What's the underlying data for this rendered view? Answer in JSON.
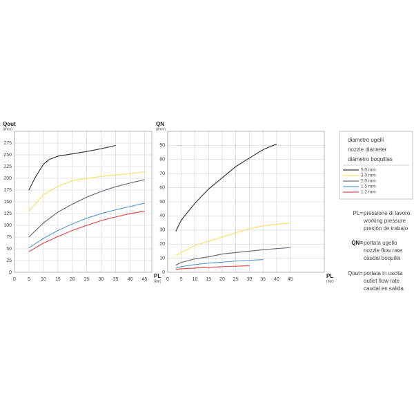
{
  "chart_data": [
    {
      "type": "line",
      "y_label": "Qout",
      "y_unit": "(l/min)",
      "x_label": "PL",
      "x_unit": "(bar)",
      "xlim": [
        0,
        47.5
      ],
      "ylim": [
        0,
        300
      ],
      "xticks": [
        0,
        5,
        10,
        15,
        20,
        25,
        30,
        35,
        40,
        45
      ],
      "yticks": [
        0,
        25,
        50,
        75,
        100,
        125,
        150,
        175,
        200,
        225,
        250,
        275
      ],
      "grid": true,
      "series": [
        {
          "name": "5.0 mm",
          "color": "#3a3a3a",
          "x": [
            5,
            7,
            10,
            12,
            15,
            20,
            25,
            30,
            35
          ],
          "values": [
            175,
            200,
            230,
            240,
            247,
            252,
            257,
            263,
            270
          ]
        },
        {
          "name": "3.0 mm",
          "color": "#f2e36a",
          "x": [
            5,
            10,
            15,
            20,
            25,
            30,
            35,
            40,
            45
          ],
          "values": [
            130,
            165,
            183,
            195,
            200,
            204,
            207,
            210,
            214
          ]
        },
        {
          "name": "2.0 mm",
          "color": "#736a7a",
          "x": [
            5,
            10,
            15,
            20,
            25,
            30,
            35,
            40,
            45
          ],
          "values": [
            75,
            105,
            128,
            145,
            160,
            172,
            182,
            190,
            197
          ]
        },
        {
          "name": "1.5 mm",
          "color": "#5b9bd5",
          "x": [
            5,
            10,
            15,
            20,
            25,
            30,
            35,
            40,
            45
          ],
          "values": [
            52,
            72,
            89,
            103,
            115,
            125,
            133,
            140,
            147
          ]
        },
        {
          "name": "1.2 mm",
          "color": "#e05050",
          "x": [
            5,
            10,
            15,
            20,
            25,
            30,
            35,
            40,
            45
          ],
          "values": [
            44,
            62,
            76,
            89,
            100,
            110,
            118,
            125,
            130
          ]
        }
      ]
    },
    {
      "type": "line",
      "y_label": "QN",
      "y_unit": "(l/min)",
      "x_label": "PL",
      "x_unit": "(bar)",
      "xlim": [
        0,
        57.5
      ],
      "ylim": [
        0,
        100
      ],
      "xticks": [
        0,
        5,
        10,
        15,
        20,
        25,
        30,
        35,
        40,
        45
      ],
      "yticks": [
        0,
        10,
        20,
        30,
        40,
        50,
        60,
        70,
        80,
        90
      ],
      "grid": true,
      "series": [
        {
          "color": "#3a3a3a",
          "x": [
            3,
            5,
            10,
            15,
            20,
            25,
            30,
            35,
            40
          ],
          "values": [
            29,
            37,
            49,
            59,
            67,
            75,
            81,
            87,
            91
          ]
        },
        {
          "color": "#f2e36a",
          "x": [
            3,
            5,
            10,
            15,
            20,
            25,
            30,
            35,
            40,
            45
          ],
          "values": [
            12,
            14,
            19,
            22,
            25,
            28,
            31,
            33,
            34,
            35
          ]
        },
        {
          "color": "#736a7a",
          "x": [
            3,
            5,
            10,
            15,
            20,
            25,
            30,
            35,
            40,
            45
          ],
          "values": [
            5,
            7,
            9.5,
            11,
            13,
            14,
            15,
            16,
            16.8,
            17.5
          ]
        },
        {
          "color": "#5b9bd5",
          "x": [
            3,
            5,
            10,
            15,
            20,
            25,
            30,
            35
          ],
          "values": [
            3,
            4,
            5.5,
            6.5,
            7.2,
            8,
            8.5,
            9
          ]
        },
        {
          "color": "#e05050",
          "x": [
            3,
            5,
            10,
            15,
            20,
            25,
            30
          ],
          "values": [
            2,
            2.5,
            3,
            3.5,
            4,
            4.3,
            4.7
          ]
        }
      ]
    }
  ],
  "legend": {
    "title": [
      "diametro ugelli",
      "nozzle diameter",
      "diámetro boquillas"
    ]
  },
  "notes": [
    {
      "key": "PL=",
      "lines": [
        "pressione di lavoro",
        "working pressure",
        "presión de trabajo"
      ]
    },
    {
      "key": "QN=",
      "lines": [
        "portata ugello",
        "nozzle flow rate",
        "caudal boquilla"
      ]
    },
    {
      "key": "Qout=",
      "lines": [
        "portata in uscita",
        "outlet flow rate",
        "caudal en salida"
      ]
    }
  ]
}
